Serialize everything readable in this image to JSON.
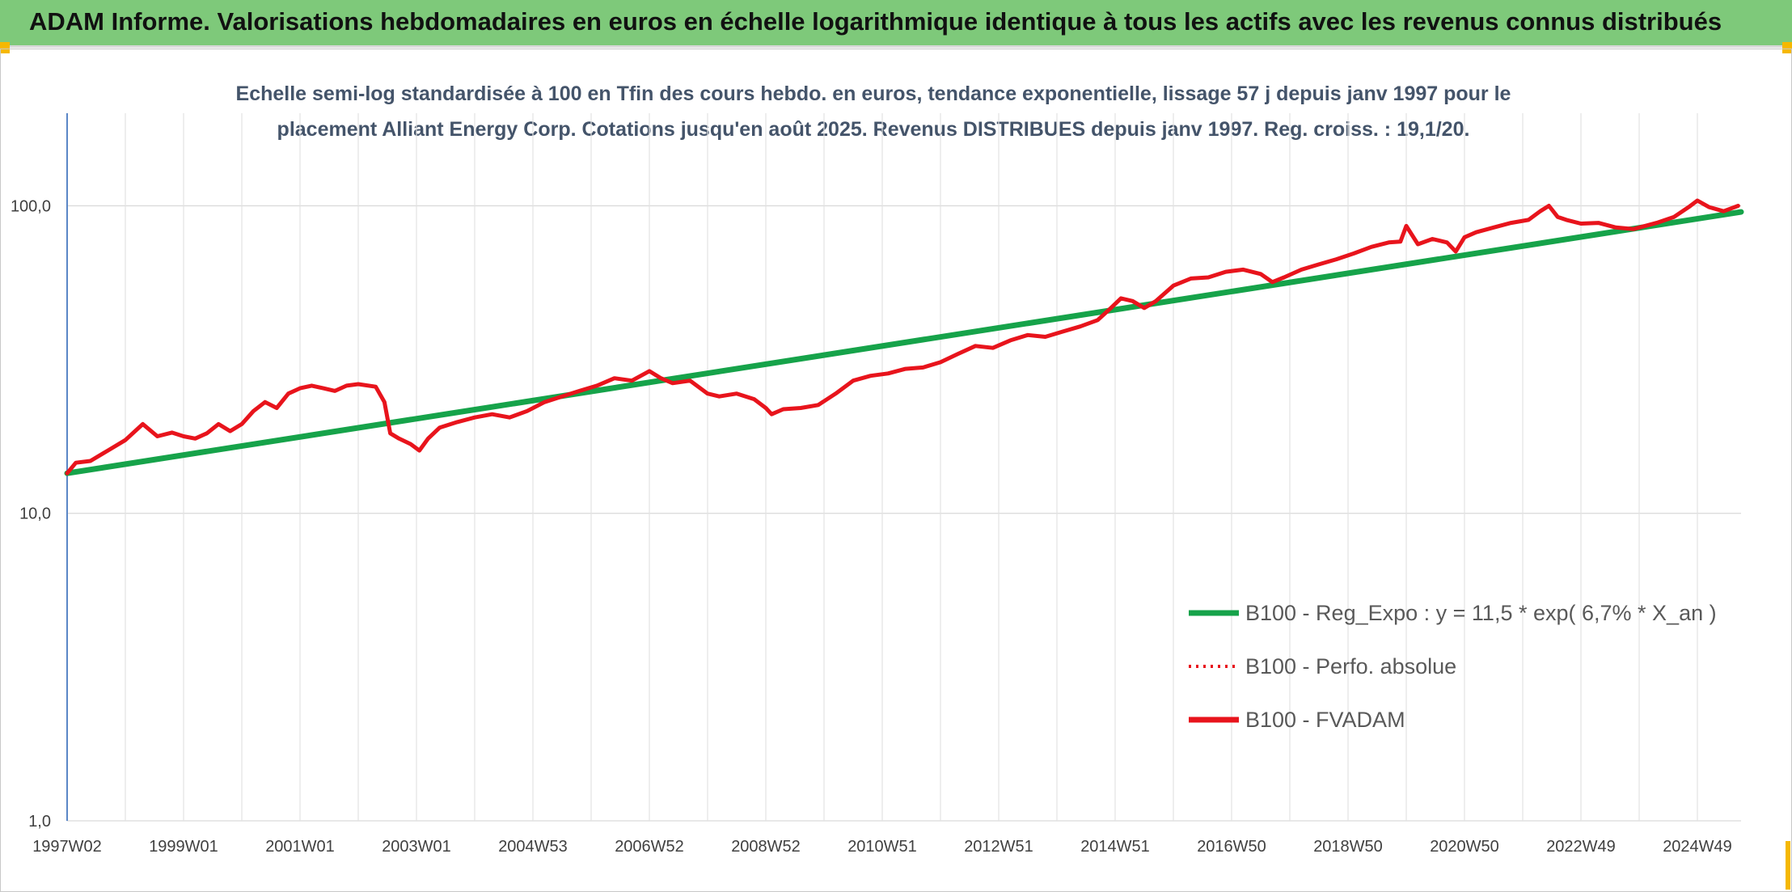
{
  "banner": {
    "title": "ADAM Informe. Valorisations hebdomadaires en euros en échelle logarithmique identique à tous les actifs avec les revenus connus distribués"
  },
  "chart_data": {
    "type": "line",
    "title_line1": "Echelle semi-log standardisée à 100 en Tfin des cours hebdo. en euros, tendance exponentielle, lissage 57 j depuis janv 1997 pour le",
    "title_line2": "placement Alliant Energy Corp. Cotations jusqu'en août 2025. Revenus DISTRIBUES depuis janv 1997. Reg. croiss. : 19,1/20.",
    "y_scale": "log",
    "ylim": [
      1,
      200
    ],
    "y_ticks": [
      {
        "value": 1,
        "label": "1,0"
      },
      {
        "value": 10,
        "label": "10,0"
      },
      {
        "value": 100,
        "label": "100,0"
      }
    ],
    "xlim": [
      1997.0,
      2025.75
    ],
    "x_ticks": [
      {
        "value": 1997.0,
        "label": "1997W02"
      },
      {
        "value": 1999.0,
        "label": "1999W01"
      },
      {
        "value": 2001.0,
        "label": "2001W01"
      },
      {
        "value": 2003.0,
        "label": "2003W01"
      },
      {
        "value": 2005.0,
        "label": "2004W53"
      },
      {
        "value": 2007.0,
        "label": "2006W52"
      },
      {
        "value": 2009.0,
        "label": "2008W52"
      },
      {
        "value": 2011.0,
        "label": "2010W51"
      },
      {
        "value": 2013.0,
        "label": "2012W51"
      },
      {
        "value": 2015.0,
        "label": "2014W51"
      },
      {
        "value": 2017.0,
        "label": "2016W50"
      },
      {
        "value": 2019.0,
        "label": "2018W50"
      },
      {
        "value": 2021.0,
        "label": "2020W50"
      },
      {
        "value": 2023.0,
        "label": "2022W49"
      },
      {
        "value": 2025.0,
        "label": "2024W49"
      }
    ],
    "grid": true,
    "legend_position": "bottom-right",
    "series": [
      {
        "name": "B100 - Reg_Expo : y = 11,5 * exp( 6,7% *  X_an )",
        "color": "#16a34a",
        "style": "solid",
        "x": [
          1997.0,
          2025.75
        ],
        "y": [
          13.5,
          95.5
        ]
      },
      {
        "name": "B100 - Perfo. absolue",
        "color": "#e8141c",
        "style": "dotted",
        "x": [],
        "y": []
      },
      {
        "name": "B100 - FVADAM",
        "color": "#e8141c",
        "style": "solid",
        "x": [
          1997.0,
          1997.15,
          1997.4,
          1997.7,
          1998.0,
          1998.3,
          1998.55,
          1998.8,
          1999.0,
          1999.2,
          1999.4,
          1999.6,
          1999.8,
          2000.0,
          2000.2,
          2000.4,
          2000.6,
          2000.8,
          2001.0,
          2001.2,
          2001.4,
          2001.6,
          2001.8,
          2002.0,
          2002.3,
          2002.45,
          2002.55,
          2002.7,
          2002.9,
          2003.05,
          2003.2,
          2003.4,
          2003.7,
          2004.0,
          2004.3,
          2004.6,
          2004.9,
          2005.2,
          2005.5,
          2005.8,
          2006.1,
          2006.4,
          2006.7,
          2007.0,
          2007.2,
          2007.4,
          2007.7,
          2008.0,
          2008.2,
          2008.5,
          2008.8,
          2009.0,
          2009.1,
          2009.3,
          2009.6,
          2009.9,
          2010.2,
          2010.5,
          2010.8,
          2011.1,
          2011.4,
          2011.7,
          2012.0,
          2012.3,
          2012.6,
          2012.9,
          2013.2,
          2013.5,
          2013.8,
          2014.1,
          2014.4,
          2014.7,
          2014.9,
          2015.1,
          2015.3,
          2015.5,
          2015.7,
          2016.0,
          2016.3,
          2016.6,
          2016.9,
          2017.2,
          2017.5,
          2017.7,
          2017.9,
          2018.2,
          2018.5,
          2018.8,
          2019.1,
          2019.4,
          2019.7,
          2019.9,
          2020.0,
          2020.2,
          2020.45,
          2020.7,
          2020.85,
          2021.0,
          2021.2,
          2021.5,
          2021.8,
          2022.1,
          2022.3,
          2022.45,
          2022.6,
          2022.75,
          2023.0,
          2023.3,
          2023.6,
          2023.9,
          2024.1,
          2024.3,
          2024.6,
          2024.85,
          2025.0,
          2025.2,
          2025.45,
          2025.7
        ],
        "y": [
          13.5,
          14.6,
          14.8,
          16.0,
          17.3,
          19.5,
          17.8,
          18.3,
          17.8,
          17.5,
          18.2,
          19.5,
          18.5,
          19.5,
          21.5,
          23.0,
          22.0,
          24.5,
          25.5,
          26.0,
          25.5,
          25.0,
          26.0,
          26.3,
          25.8,
          23.0,
          18.2,
          17.5,
          16.8,
          16.0,
          17.5,
          19.0,
          19.8,
          20.5,
          21.0,
          20.5,
          21.5,
          23.0,
          24.0,
          25.0,
          26.0,
          27.5,
          27.0,
          29.0,
          27.5,
          26.5,
          27.0,
          24.5,
          24.0,
          24.5,
          23.5,
          22.0,
          21.0,
          21.8,
          22.0,
          22.5,
          24.5,
          27.0,
          28.0,
          28.5,
          29.5,
          29.8,
          31.0,
          33.0,
          35.0,
          34.5,
          36.5,
          38.0,
          37.5,
          39.0,
          40.5,
          42.5,
          46.0,
          50.0,
          49.0,
          46.5,
          49.0,
          55.0,
          58.0,
          58.5,
          61.0,
          62.0,
          60.0,
          56.5,
          58.5,
          62.0,
          64.5,
          67.0,
          70.0,
          73.5,
          76.0,
          76.5,
          86.0,
          75.0,
          78.0,
          76.0,
          71.0,
          79.0,
          82.0,
          85.0,
          88.0,
          90.0,
          96.0,
          100.0,
          92.0,
          90.0,
          87.5,
          88.0,
          85.0,
          84.0,
          86.0,
          88.0,
          92.0,
          99.0,
          104.0,
          99.0,
          96.0,
          100.0
        ]
      }
    ]
  }
}
